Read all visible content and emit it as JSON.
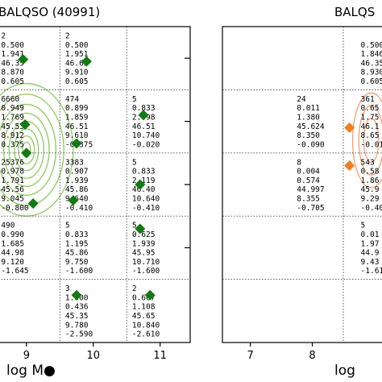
{
  "chart_data": [
    {
      "type": "scatter",
      "title": "BALQSO (40991)",
      "xlabel": "log M●",
      "x_ticks": [
        "9",
        "10",
        "11"
      ],
      "xlim": [
        8.58,
        11.45
      ],
      "ylim": [
        -3.0,
        2.0
      ],
      "x_grid_lines": [
        9.5,
        10.5
      ],
      "y_grid_lines": [
        1.0,
        0.0,
        -1.0,
        -2.0
      ],
      "y_tick_marks": [
        1.5,
        0.5,
        -0.5,
        -1.5
      ],
      "contour": {
        "color": "#7ac143",
        "center": [
          9.0,
          0.05
        ],
        "radii_x": [
          0.06,
          0.12,
          0.18,
          0.26,
          0.34,
          0.44,
          0.56,
          0.7
        ],
        "radii_y": [
          0.12,
          0.22,
          0.33,
          0.45,
          0.58,
          0.72,
          0.88,
          1.05
        ]
      },
      "marker_color": "#127a12",
      "points": [
        {
          "x": 8.95,
          "y": 1.48
        },
        {
          "x": 9.9,
          "y": 1.45
        },
        {
          "x": 8.98,
          "y": 0.45
        },
        {
          "x": 10.75,
          "y": 0.6
        },
        {
          "x": 9.0,
          "y": 0.0
        },
        {
          "x": 9.75,
          "y": 0.15
        },
        {
          "x": 10.7,
          "y": -0.5
        },
        {
          "x": 9.1,
          "y": -0.8
        },
        {
          "x": 9.7,
          "y": -0.75
        },
        {
          "x": 10.7,
          "y": -1.2
        },
        {
          "x": 9.75,
          "y": -2.25
        },
        {
          "x": 10.85,
          "y": -2.25
        }
      ],
      "cells": [
        {
          "x": 8.62,
          "y": 1.93,
          "lines": [
            "2",
            "0.500",
            "1.941",
            "46.35",
            "8.870",
            "0.605"
          ]
        },
        {
          "x": 9.58,
          "y": 1.93,
          "lines": [
            "2",
            "0.500",
            "1.951",
            "46.65",
            "9.910",
            "0.605"
          ]
        },
        {
          "x": 8.62,
          "y": 0.93,
          "lines": [
            "6660",
            "0.949",
            "1.769",
            "45.53",
            "8.912",
            "0.375"
          ]
        },
        {
          "x": 9.58,
          "y": 0.93,
          "lines": [
            "474",
            "0.899",
            "1.859",
            "46.51",
            "9.610",
            "-0.375"
          ]
        },
        {
          "x": 10.58,
          "y": 0.93,
          "lines": [
            "5",
            "0.833",
            "2.098",
            "46.51",
            "10.740",
            "-0.020"
          ]
        },
        {
          "x": 8.62,
          "y": -0.07,
          "lines": [
            "25376",
            "0.978",
            "1.791",
            "45.56",
            "9.045",
            "-0.800"
          ]
        },
        {
          "x": 9.58,
          "y": -0.07,
          "lines": [
            "3383",
            "0.907",
            "1.939",
            "45.86",
            "9.640",
            "-0.410"
          ]
        },
        {
          "x": 10.58,
          "y": -0.07,
          "lines": [
            "5",
            "0.833",
            "2.119",
            "46.40",
            "10.640",
            "-0.410"
          ]
        },
        {
          "x": 8.62,
          "y": -1.07,
          "lines": [
            "490",
            "0.990",
            "1.685",
            "44.98",
            "9.120",
            "-1.645"
          ]
        },
        {
          "x": 9.58,
          "y": -1.07,
          "lines": [
            "5",
            "0.833",
            "1.195",
            "45.86",
            "9.750",
            "-1.600"
          ]
        },
        {
          "x": 10.58,
          "y": -1.07,
          "lines": [
            "5",
            "0.625",
            "1.939",
            "45.95",
            "10.710",
            "-1.600"
          ]
        },
        {
          "x": 9.58,
          "y": -2.07,
          "lines": [
            "3",
            "1.000",
            "0.436",
            "45.35",
            "9.780",
            "-2.590"
          ]
        },
        {
          "x": 10.58,
          "y": -2.07,
          "lines": [
            "2",
            "0.667",
            "1.108",
            "45.65",
            "10.840",
            "-2.610"
          ]
        }
      ]
    },
    {
      "type": "scatter",
      "title": "BALQS",
      "xlabel": "log",
      "x_ticks": [
        "7",
        "8"
      ],
      "xlim": [
        6.55,
        9.15
      ],
      "ylim": [
        -3.0,
        2.0
      ],
      "x_grid_lines": [
        8.5
      ],
      "y_grid_lines": [
        1.0,
        0.0,
        -1.0,
        -2.0
      ],
      "y_tick_marks": [],
      "contour": {
        "color": "#f28e5a",
        "center": [
          8.95,
          0.2
        ],
        "radii_x": [
          0.12,
          0.2,
          0.3
        ],
        "radii_y": [
          0.35,
          0.55,
          0.75
        ]
      },
      "marker_color": "#f07f21",
      "points": [
        {
          "x": 8.6,
          "y": 0.4
        },
        {
          "x": 8.6,
          "y": -0.2
        }
      ],
      "cells": [
        {
          "x": 8.78,
          "y": 1.93,
          "lines": [
            "",
            "0.500",
            "1.846",
            "46.35",
            "8.930",
            "0.605"
          ]
        },
        {
          "x": 7.75,
          "y": 0.93,
          "lines": [
            "24",
            "0.011",
            "1.380",
            "45.624",
            "8.350",
            "-0.090"
          ]
        },
        {
          "x": 8.78,
          "y": 0.93,
          "lines": [
            "361",
            "0.65",
            "1.75",
            "46.1",
            "8.65",
            "-0.01"
          ]
        },
        {
          "x": 7.75,
          "y": -0.07,
          "lines": [
            "8",
            "0.004",
            "0.574",
            "44.997",
            "8.355",
            "-0.705"
          ]
        },
        {
          "x": 8.78,
          "y": -0.07,
          "lines": [
            "543",
            "0.58",
            "1.86",
            "45.9",
            "9.29",
            "-0.40"
          ]
        },
        {
          "x": 8.78,
          "y": -1.07,
          "lines": [
            "5",
            "0.01",
            "1.97",
            "44.9",
            "9.43",
            "-1.61"
          ]
        }
      ]
    }
  ]
}
